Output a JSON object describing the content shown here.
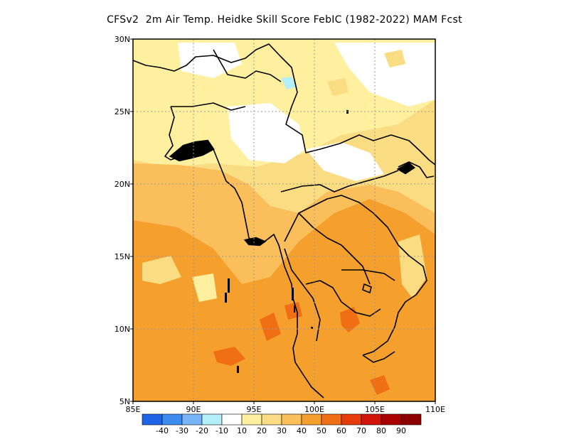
{
  "title": "CFSv2  2m Air Temp. Heidke Skill Score FebIC (1982-2022) MAM Fcst",
  "map": {
    "lon_ticks": [
      "85E",
      "90E",
      "95E",
      "100E",
      "105E",
      "110E"
    ],
    "lat_ticks": [
      "30N",
      "25N",
      "20N",
      "15N",
      "10N",
      "5N"
    ],
    "lon_range": [
      85,
      110
    ],
    "lat_range": [
      5,
      30
    ],
    "gridlines": "dotted"
  },
  "legend": {
    "labels": [
      "-40",
      "-30",
      "-20",
      "-10",
      "10",
      "20",
      "30",
      "40",
      "50",
      "60",
      "70",
      "80",
      "90"
    ],
    "colors": [
      "#1e64e6",
      "#3c8cf0",
      "#78b4f8",
      "#b4f0fa",
      "#ffffff",
      "#fff0a0",
      "#fadc82",
      "#fabe5a",
      "#f5a02d",
      "#f06e14",
      "#e63c0a",
      "#d2140a",
      "#aa0000",
      "#8c0000"
    ]
  }
}
